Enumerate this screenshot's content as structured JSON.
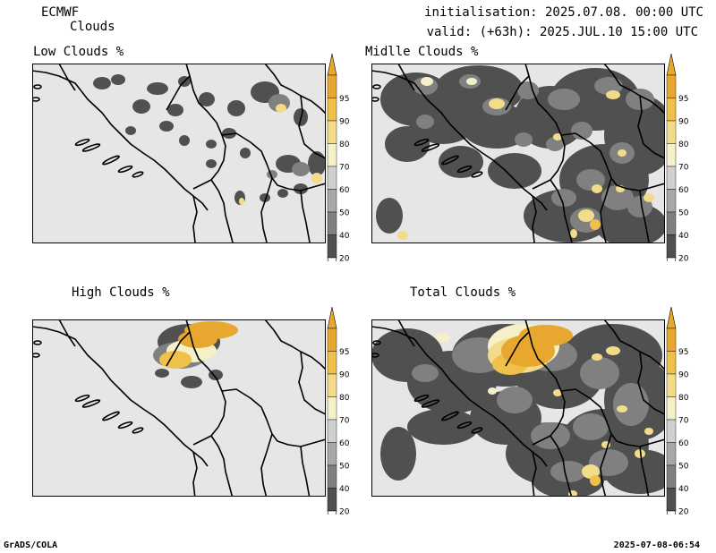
{
  "header": {
    "model": "ECMWF",
    "product": "Clouds",
    "initialisation": "initialisation: 2025.07.08. 00:00 UTC",
    "valid": "valid: (+63h): 2025.JUL.10 15:00 UTC"
  },
  "panels": [
    {
      "title": "Low Clouds %"
    },
    {
      "title": "Midlle Clouds %"
    },
    {
      "title": "High Clouds %"
    },
    {
      "title": "Total Clouds %"
    }
  ],
  "colorbar": {
    "levels": [
      "95",
      "90",
      "80",
      "70",
      "60",
      "50",
      "40",
      "20"
    ],
    "colors": [
      "#e8a830",
      "#efc04a",
      "#f2dc8a",
      "#f5f0c8",
      "#d0d0d0",
      "#a8a8a8",
      "#808080",
      "#505050"
    ]
  },
  "footer": {
    "left": "GrADS/COLA",
    "right": "2025-07-08-06:54"
  }
}
